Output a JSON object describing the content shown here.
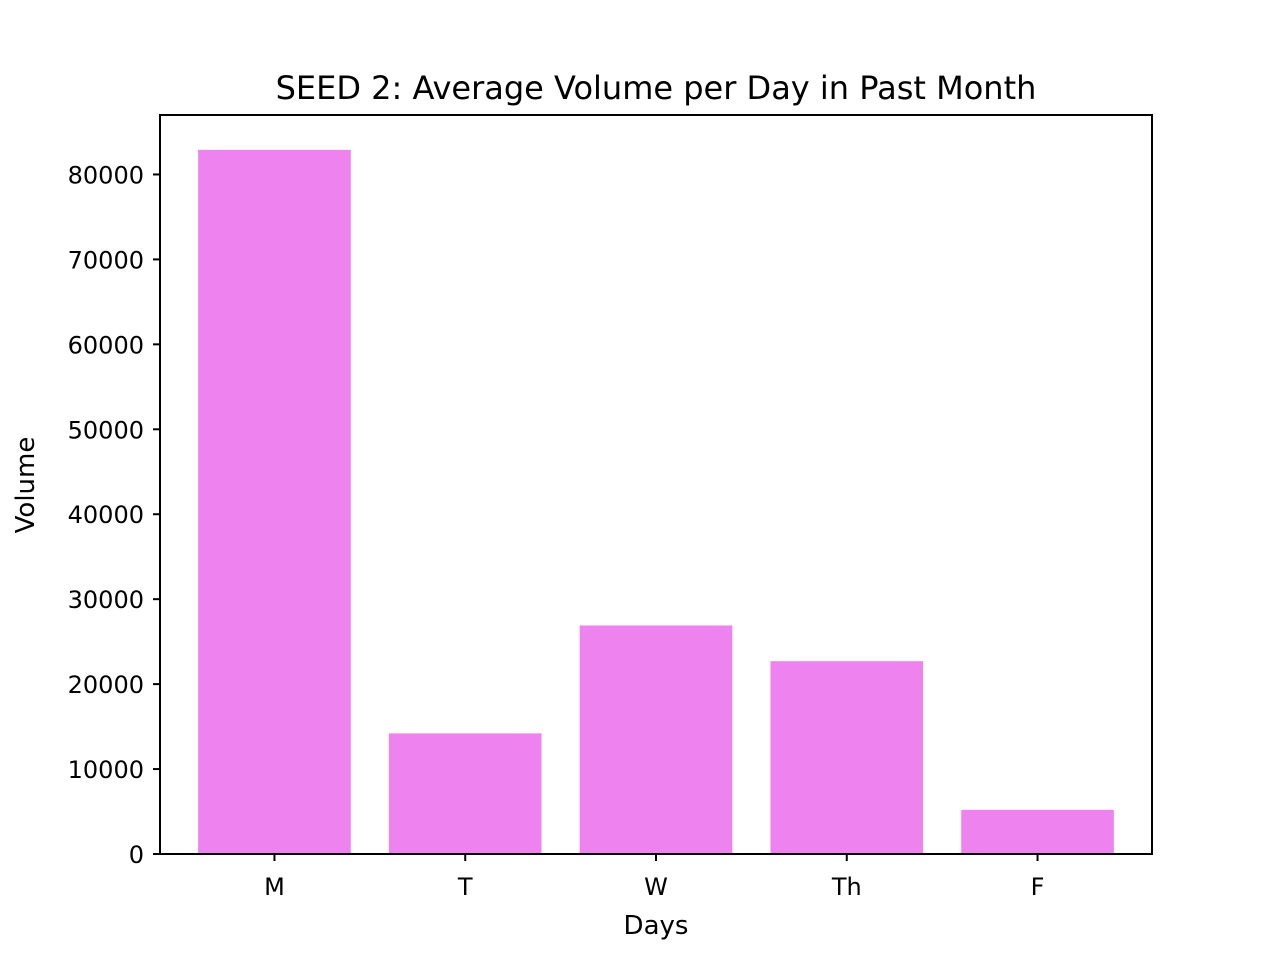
{
  "chart_data": {
    "type": "bar",
    "title": "SEED 2: Average Volume per Day in Past Month",
    "xlabel": "Days",
    "ylabel": "Volume",
    "categories": [
      "M",
      "T",
      "W",
      "Th",
      "F"
    ],
    "values": [
      82900,
      14200,
      26900,
      22700,
      5200
    ],
    "ylim": [
      0,
      87000
    ],
    "yticks": [
      0,
      10000,
      20000,
      30000,
      40000,
      50000,
      60000,
      70000,
      80000
    ],
    "ytick_labels": [
      "0",
      "10000",
      "20000",
      "30000",
      "40000",
      "50000",
      "60000",
      "70000",
      "80000"
    ],
    "bar_color": "#ee82ee",
    "grid": false,
    "legend": false
  }
}
